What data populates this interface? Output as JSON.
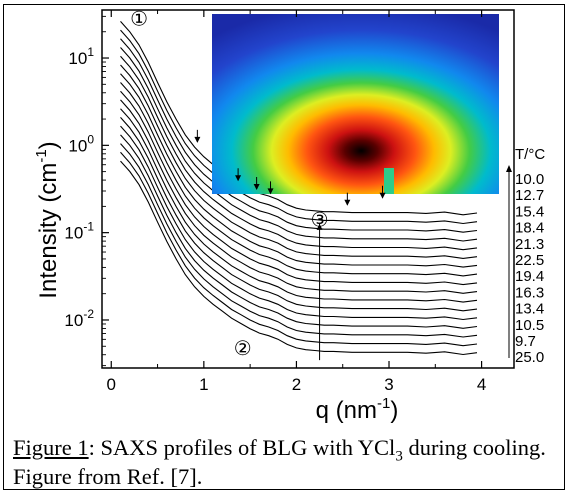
{
  "chart_data": {
    "type": "line",
    "xlabel": "q (nm",
    "xlabel_sup": "-1",
    "xlabel_close": ")",
    "ylabel": "Intensity (cm",
    "ylabel_sup": "-1",
    "ylabel_close": ")",
    "x_ticks": [
      "0",
      "1",
      "2",
      "3",
      "4"
    ],
    "y_ticks": [
      {
        "base": "10",
        "exp": "1"
      },
      {
        "base": "10",
        "exp": "0"
      },
      {
        "base": "10",
        "exp": "-1"
      },
      {
        "base": "10",
        "exp": "-2"
      }
    ],
    "xlim": [
      -0.1,
      4.35
    ],
    "ylim_log10": [
      -2.55,
      1.55
    ],
    "y_scale": "log",
    "legend_title": "T/°C",
    "temperatures": [
      "10.0",
      "12.7",
      "15.4",
      "18.4",
      "21.3",
      "22.5",
      "19.4",
      "16.3",
      "13.4",
      "10.5",
      "9.7",
      "25.0"
    ],
    "inset": "2D SAXS detector pattern (top-center)",
    "annotations": [
      {
        "text": "①",
        "x": 0.3,
        "y_log": 1.45
      },
      {
        "text": "②",
        "x": 1.42,
        "y_log": -2.32
      },
      {
        "text": "③",
        "x": 2.25,
        "y_log": -0.85
      }
    ],
    "peak_arrows_q": [
      0.93,
      1.37,
      1.57,
      1.72,
      2.55,
      2.93
    ],
    "series_count": 17,
    "series_offsets_log10": [
      0.0,
      -0.1,
      -0.2,
      -0.3,
      -0.4,
      -0.5,
      -0.6,
      -0.7,
      -0.8,
      -0.9,
      -1.0,
      -1.1,
      -1.2,
      -1.3,
      -1.4,
      -1.5,
      -1.6
    ],
    "series_base_profile": {
      "q": [
        0.1,
        0.2,
        0.3,
        0.4,
        0.5,
        0.6,
        0.7,
        0.8,
        0.9,
        1.0,
        1.1,
        1.2,
        1.3,
        1.4,
        1.5,
        1.6,
        1.7,
        1.8,
        1.9,
        2.0,
        2.1,
        2.2,
        2.3,
        2.4,
        2.6,
        2.8,
        3.0,
        3.2,
        3.4,
        3.6,
        3.8,
        3.95
      ],
      "log_I": [
        1.42,
        1.3,
        1.15,
        0.95,
        0.72,
        0.5,
        0.3,
        0.12,
        -0.02,
        -0.13,
        -0.22,
        -0.3,
        -0.38,
        -0.44,
        -0.5,
        -0.55,
        -0.58,
        -0.62,
        -0.68,
        -0.72,
        -0.74,
        -0.75,
        -0.76,
        -0.76,
        -0.77,
        -0.77,
        -0.77,
        -0.77,
        -0.78,
        -0.78,
        -0.78,
        -0.79
      ]
    }
  },
  "caption": {
    "label": "Figure 1",
    "text_before_sub": ": SAXS profiles of BLG with YCl",
    "sub": "3",
    "text_after_sub": " during cooling. Figure from Ref. [7]."
  }
}
